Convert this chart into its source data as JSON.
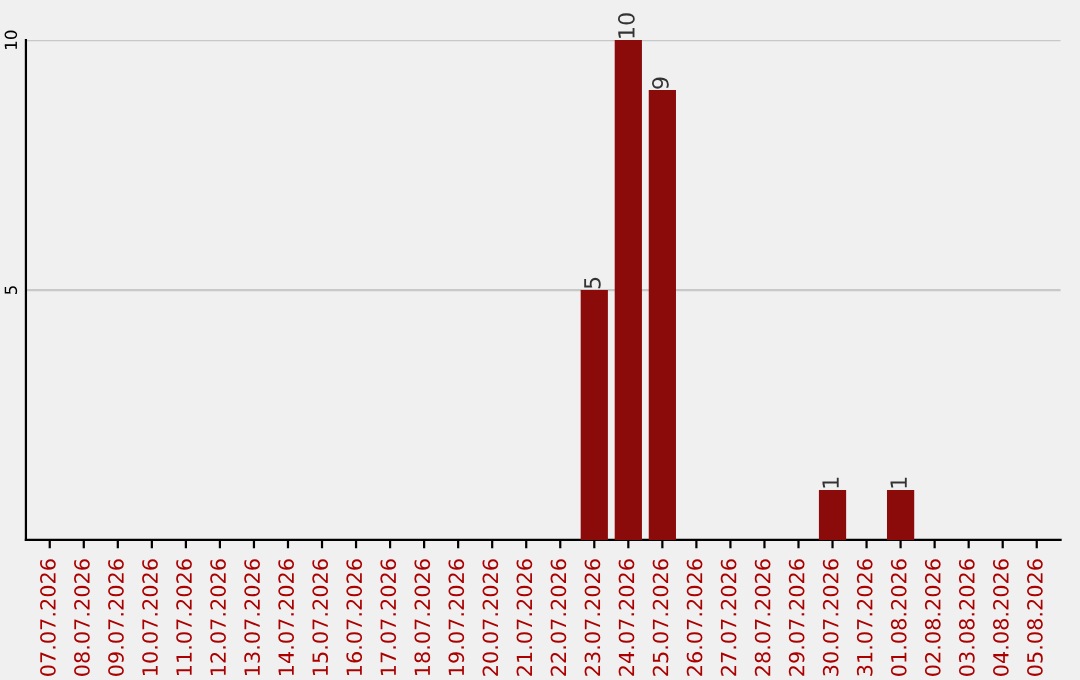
{
  "chart_data": {
    "type": "bar",
    "categories": [
      "07.07.2026",
      "08.07.2026",
      "09.07.2026",
      "10.07.2026",
      "11.07.2026",
      "12.07.2026",
      "13.07.2026",
      "14.07.2026",
      "15.07.2026",
      "16.07.2026",
      "17.07.2026",
      "18.07.2026",
      "19.07.2026",
      "20.07.2026",
      "21.07.2026",
      "22.07.2026",
      "23.07.2026",
      "24.07.2026",
      "25.07.2026",
      "26.07.2026",
      "27.07.2026",
      "28.07.2026",
      "29.07.2026",
      "30.07.2026",
      "31.07.2026",
      "01.08.2026",
      "02.08.2026",
      "03.08.2026",
      "04.08.2026",
      "05.08.2026"
    ],
    "values": [
      0,
      0,
      0,
      0,
      0,
      0,
      0,
      0,
      0,
      0,
      0,
      0,
      0,
      0,
      0,
      0,
      5,
      10,
      9,
      0,
      0,
      0,
      0,
      1,
      0,
      1,
      0,
      0,
      0,
      0
    ],
    "value_labels": [
      null,
      null,
      null,
      null,
      null,
      null,
      null,
      null,
      null,
      null,
      null,
      null,
      null,
      null,
      null,
      null,
      "5",
      "10",
      "9",
      null,
      null,
      null,
      null,
      "1",
      null,
      "1",
      null,
      null,
      null,
      null
    ],
    "color": "#8b0a0a",
    "ylim": [
      0,
      10
    ],
    "yticks": [
      5,
      10
    ],
    "grid": "y",
    "legend": false
  }
}
